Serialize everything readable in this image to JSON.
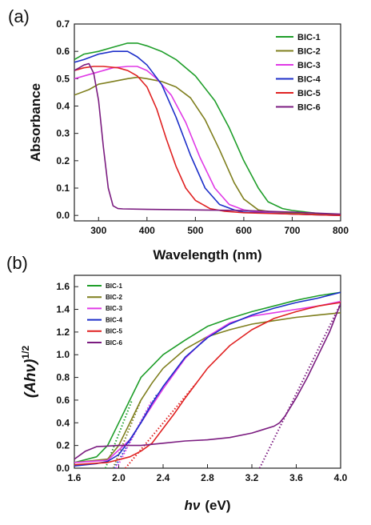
{
  "chart_data": [
    {
      "panel_label": "(a)",
      "type": "line",
      "xlabel": "Wavelength (nm)",
      "ylabel": "Absorbance",
      "xlim": [
        250,
        800
      ],
      "ylim": [
        -0.02,
        0.7
      ],
      "xticks": [
        300,
        400,
        500,
        600,
        700,
        800
      ],
      "yticks": [
        0.0,
        0.1,
        0.2,
        0.3,
        0.4,
        0.5,
        0.6,
        0.7
      ],
      "x_tick_labels": [
        "300",
        "400",
        "500",
        "600",
        "700",
        "800"
      ],
      "y_tick_labels": [
        "0.0",
        "0.1",
        "0.2",
        "0.3",
        "0.4",
        "0.5",
        "0.6",
        "0.7"
      ],
      "grid": false,
      "legend_position": "top-right",
      "series": [
        {
          "name": "BIC-1",
          "color": "#1f9e2a",
          "x": [
            250,
            270,
            300,
            330,
            360,
            380,
            400,
            430,
            460,
            500,
            540,
            570,
            600,
            630,
            650,
            680,
            700,
            750,
            800
          ],
          "y": [
            0.57,
            0.59,
            0.6,
            0.615,
            0.63,
            0.63,
            0.62,
            0.6,
            0.57,
            0.51,
            0.42,
            0.32,
            0.2,
            0.1,
            0.05,
            0.025,
            0.018,
            0.008,
            0.0
          ]
        },
        {
          "name": "BIC-2",
          "color": "#7f7f1e",
          "x": [
            250,
            280,
            300,
            330,
            360,
            380,
            400,
            430,
            460,
            490,
            520,
            550,
            580,
            600,
            630,
            660,
            700,
            800
          ],
          "y": [
            0.44,
            0.46,
            0.48,
            0.49,
            0.5,
            0.505,
            0.5,
            0.49,
            0.47,
            0.43,
            0.35,
            0.24,
            0.12,
            0.06,
            0.02,
            0.012,
            0.008,
            0.0
          ]
        },
        {
          "name": "BIC-3",
          "color": "#e03ae6",
          "x": [
            250,
            280,
            300,
            330,
            360,
            380,
            400,
            420,
            450,
            480,
            510,
            540,
            570,
            600,
            630,
            700,
            800
          ],
          "y": [
            0.5,
            0.515,
            0.525,
            0.54,
            0.545,
            0.545,
            0.53,
            0.5,
            0.44,
            0.34,
            0.21,
            0.1,
            0.04,
            0.02,
            0.012,
            0.005,
            0.0
          ]
        },
        {
          "name": "BIC-4",
          "color": "#1d2fc9",
          "x": [
            250,
            270,
            300,
            330,
            360,
            380,
            400,
            430,
            460,
            490,
            520,
            550,
            580,
            600,
            700,
            800
          ],
          "y": [
            0.56,
            0.57,
            0.59,
            0.6,
            0.6,
            0.58,
            0.55,
            0.48,
            0.36,
            0.22,
            0.1,
            0.04,
            0.02,
            0.012,
            0.005,
            0.0
          ]
        },
        {
          "name": "BIC-5",
          "color": "#e02222",
          "x": [
            250,
            270,
            290,
            310,
            340,
            360,
            380,
            400,
            420,
            440,
            460,
            480,
            500,
            530,
            560,
            600,
            700,
            800
          ],
          "y": [
            0.53,
            0.54,
            0.545,
            0.545,
            0.54,
            0.53,
            0.51,
            0.47,
            0.39,
            0.28,
            0.18,
            0.1,
            0.055,
            0.025,
            0.015,
            0.01,
            0.005,
            0.0
          ]
        },
        {
          "name": "BIC-6",
          "color": "#7b1c80",
          "x": [
            250,
            260,
            270,
            280,
            290,
            300,
            310,
            320,
            330,
            340,
            350,
            400,
            500,
            600,
            700,
            800
          ],
          "y": [
            0.53,
            0.54,
            0.55,
            0.555,
            0.52,
            0.42,
            0.25,
            0.1,
            0.035,
            0.025,
            0.024,
            0.022,
            0.02,
            0.018,
            0.012,
            0.005
          ]
        }
      ]
    },
    {
      "panel_label": "(b)",
      "type": "line",
      "xlabel_main": "hν",
      "xlabel_unit": "(eV)",
      "ylabel_main": "(Ahν)",
      "ylabel_sup": "1/2",
      "xlim": [
        1.6,
        4.0
      ],
      "ylim": [
        0.0,
        1.7
      ],
      "xticks": [
        1.6,
        2.0,
        2.4,
        2.8,
        3.2,
        3.6,
        4.0
      ],
      "yticks": [
        0.0,
        0.2,
        0.4,
        0.6,
        0.8,
        1.0,
        1.2,
        1.4,
        1.6
      ],
      "x_tick_labels": [
        "1.6",
        "2.0",
        "2.4",
        "2.8",
        "3.2",
        "3.6",
        "4.0"
      ],
      "y_tick_labels": [
        "0.0",
        "0.2",
        "0.4",
        "0.6",
        "0.8",
        "1.0",
        "1.2",
        "1.4",
        "1.6"
      ],
      "grid": false,
      "legend_position": "top-left",
      "series": [
        {
          "name": "BIC-1",
          "color": "#1f9e2a",
          "x": [
            1.6,
            1.8,
            1.9,
            2.0,
            2.1,
            2.2,
            2.4,
            2.6,
            2.8,
            3.0,
            3.2,
            3.4,
            3.6,
            3.8,
            4.0
          ],
          "y": [
            0.05,
            0.1,
            0.2,
            0.4,
            0.6,
            0.8,
            1.0,
            1.13,
            1.25,
            1.32,
            1.38,
            1.43,
            1.48,
            1.52,
            1.55
          ]
        },
        {
          "name": "BIC-2",
          "color": "#7f7f1e",
          "x": [
            1.6,
            1.9,
            2.0,
            2.1,
            2.2,
            2.3,
            2.4,
            2.6,
            2.8,
            3.0,
            3.2,
            3.4,
            3.6,
            3.8,
            4.0
          ],
          "y": [
            0.05,
            0.08,
            0.2,
            0.4,
            0.6,
            0.75,
            0.88,
            1.05,
            1.16,
            1.22,
            1.27,
            1.3,
            1.33,
            1.35,
            1.37
          ]
        },
        {
          "name": "BIC-3",
          "color": "#e03ae6",
          "x": [
            1.6,
            1.9,
            2.1,
            2.2,
            2.3,
            2.4,
            2.6,
            2.8,
            3.0,
            3.2,
            3.4,
            3.6,
            3.8,
            4.0
          ],
          "y": [
            0.05,
            0.07,
            0.25,
            0.4,
            0.55,
            0.7,
            0.97,
            1.16,
            1.28,
            1.34,
            1.37,
            1.4,
            1.43,
            1.47
          ]
        },
        {
          "name": "BIC-4",
          "color": "#1d2fc9",
          "x": [
            1.6,
            1.8,
            1.9,
            2.0,
            2.1,
            2.2,
            2.3,
            2.4,
            2.6,
            2.8,
            3.0,
            3.2,
            3.4,
            3.6,
            3.8,
            4.0
          ],
          "y": [
            0.02,
            0.04,
            0.06,
            0.12,
            0.25,
            0.4,
            0.57,
            0.72,
            0.98,
            1.15,
            1.27,
            1.35,
            1.41,
            1.46,
            1.5,
            1.55
          ]
        },
        {
          "name": "BIC-5",
          "color": "#e02222",
          "x": [
            1.6,
            1.9,
            2.1,
            2.2,
            2.3,
            2.4,
            2.5,
            2.6,
            2.8,
            3.0,
            3.2,
            3.4,
            3.6,
            3.8,
            4.0
          ],
          "y": [
            0.03,
            0.05,
            0.1,
            0.15,
            0.22,
            0.35,
            0.48,
            0.62,
            0.88,
            1.08,
            1.22,
            1.32,
            1.38,
            1.43,
            1.46
          ]
        },
        {
          "name": "BIC-6",
          "color": "#7b1c80",
          "x": [
            1.6,
            1.7,
            1.8,
            2.0,
            2.2,
            2.4,
            2.6,
            2.8,
            3.0,
            3.2,
            3.3,
            3.4,
            3.45,
            3.5,
            3.6,
            3.7,
            3.8,
            3.9,
            4.0
          ],
          "y": [
            0.08,
            0.15,
            0.19,
            0.2,
            0.2,
            0.22,
            0.24,
            0.25,
            0.27,
            0.31,
            0.34,
            0.37,
            0.4,
            0.46,
            0.62,
            0.8,
            1.0,
            1.2,
            1.45
          ]
        }
      ],
      "fit_lines": [
        {
          "color": "#1f9e2a",
          "x": [
            1.88,
            2.12
          ],
          "y": [
            0.0,
            0.6
          ]
        },
        {
          "color": "#7f7f1e",
          "x": [
            1.95,
            2.2
          ],
          "y": [
            0.0,
            0.6
          ]
        },
        {
          "color": "#e03ae6",
          "x": [
            1.98,
            2.3
          ],
          "y": [
            0.0,
            0.6
          ]
        },
        {
          "color": "#1d2fc9",
          "x": [
            1.96,
            2.35
          ],
          "y": [
            0.0,
            0.66
          ]
        },
        {
          "color": "#e02222",
          "x": [
            2.06,
            2.7
          ],
          "y": [
            0.0,
            0.75
          ]
        },
        {
          "color": "#7b1c80",
          "x": [
            3.27,
            4.0
          ],
          "y": [
            0.0,
            1.45
          ]
        }
      ]
    }
  ]
}
